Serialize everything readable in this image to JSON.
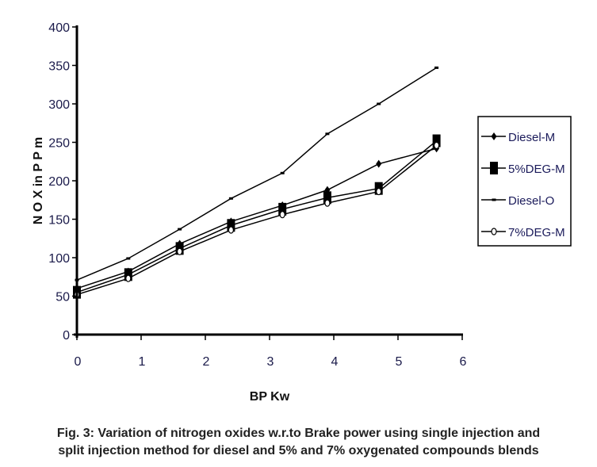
{
  "chart_data": {
    "type": "line",
    "title": "",
    "xlabel": "BP Kw",
    "ylabel": "N O X in P P m",
    "xlim": [
      0,
      6
    ],
    "ylim": [
      0,
      400
    ],
    "x_ticks": [
      "0",
      "1",
      "2",
      "3",
      "4",
      "5",
      "6"
    ],
    "y_ticks": [
      "0",
      "50",
      "100",
      "150",
      "200",
      "250",
      "300",
      "350",
      "400"
    ],
    "grid": false,
    "legend_position": "right",
    "x": [
      0,
      0.8,
      1.6,
      2.4,
      3.2,
      3.9,
      4.7,
      5.6
    ],
    "series": [
      {
        "name": "Diesel-M",
        "marker": "diamond",
        "values": [
          60,
          82,
          118,
          147,
          168,
          188,
          222,
          242
        ]
      },
      {
        "name": "5%DEG-M",
        "marker": "square",
        "values": [
          55,
          78,
          112,
          142,
          163,
          178,
          190,
          252
        ]
      },
      {
        "name": "Diesel-O",
        "marker": "dash",
        "values": [
          71,
          99,
          137,
          177,
          210,
          261,
          300,
          347
        ]
      },
      {
        "name": "7%DEG-M",
        "marker": "circle",
        "values": [
          52,
          73,
          108,
          136,
          156,
          171,
          186,
          246
        ]
      }
    ]
  },
  "caption": {
    "line1": "Fig. 3: Variation of nitrogen oxides w.r.to Brake power using single injection and",
    "line2": "split injection method for diesel and 5% and 7% oxygenated compounds blends"
  }
}
